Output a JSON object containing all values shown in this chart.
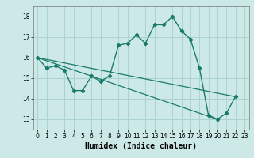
{
  "title": "",
  "xlabel": "Humidex (Indice chaleur)",
  "bg_color": "#cce9e8",
  "grid_color": "#aad4d0",
  "line_color": "#1a7a6a",
  "xlim": [
    -0.5,
    23.5
  ],
  "ylim": [
    12.5,
    18.5
  ],
  "yticks": [
    13,
    14,
    15,
    16,
    17,
    18
  ],
  "xticks": [
    0,
    1,
    2,
    3,
    4,
    5,
    6,
    7,
    8,
    9,
    10,
    11,
    12,
    13,
    14,
    15,
    16,
    17,
    18,
    19,
    20,
    21,
    22,
    23
  ],
  "series1_x": [
    0,
    1,
    2,
    3,
    4,
    5,
    6,
    7,
    8,
    9,
    10,
    11,
    12,
    13,
    14,
    15,
    16,
    17,
    18,
    19,
    20,
    21,
    22
  ],
  "series1_y": [
    16.0,
    15.5,
    15.6,
    15.4,
    14.4,
    14.4,
    15.1,
    14.85,
    15.1,
    16.6,
    16.7,
    17.1,
    16.7,
    17.6,
    17.6,
    18.0,
    17.3,
    16.9,
    15.5,
    13.2,
    13.0,
    13.3,
    14.1
  ],
  "series2_x": [
    0,
    22
  ],
  "series2_y": [
    16.0,
    14.1
  ],
  "series3_x": [
    0,
    20
  ],
  "series3_y": [
    16.0,
    13.0
  ],
  "xlabel_fontsize": 7,
  "tick_fontsize": 5.5
}
